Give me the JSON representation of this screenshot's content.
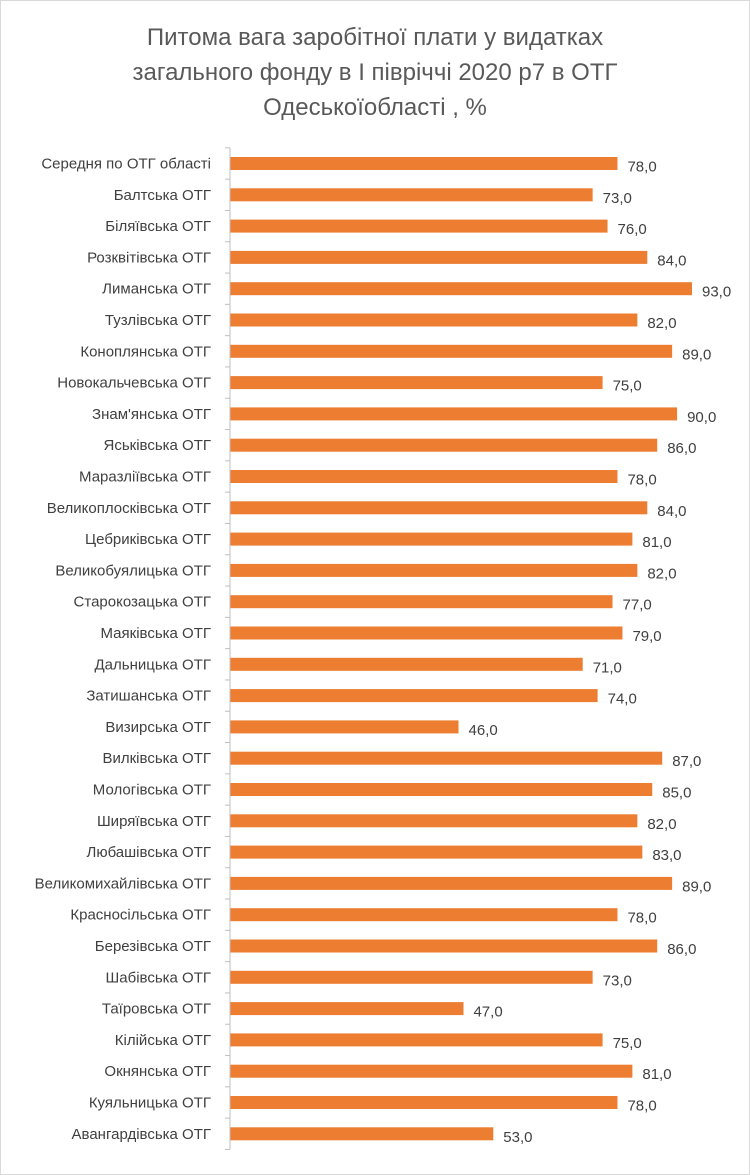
{
  "title_lines": [
    "Питома вага заробітної плати у видатках",
    "загального фонду в І півріччі 2020 р7 в ОТГ",
    "Одеськоїобласті  , %"
  ],
  "colors": {
    "bar": "#ED7D31",
    "text": "#404040",
    "axis": "#bfbfbf",
    "title": "#595959"
  },
  "chart_data": {
    "type": "bar",
    "orientation": "horizontal",
    "title": "Питома вага заробітної плати у видатках загального фонду в І півріччі 2020 р7 в ОТГ Одеськоїобласті  , %",
    "categories": [
      "Середня по ОТГ області",
      "Балтська ОТГ",
      "Біляївська ОТГ",
      "Розквітівська ОТГ",
      "Лиманська ОТГ",
      "Тузлівська ОТГ",
      "Коноплянська ОТГ",
      "Новокальчевська ОТГ",
      "Знам'янська ОТГ",
      "Яськівська ОТГ",
      "Маразліївська ОТГ",
      "Великоплосківська ОТГ",
      "Цебриківська ОТГ",
      "Великобуялицька ОТГ",
      "Старокозацька ОТГ",
      "Маяківська ОТГ",
      "Дальницька ОТГ",
      "Затишанська ОТГ",
      "Визирська ОТГ",
      "Вилківська ОТГ",
      "Мологівська ОТГ",
      "Ширяївська  ОТГ",
      "Любашівська ОТГ",
      "Великомихайлівська ОТГ",
      "Красносільська  ОТГ",
      "Березівська ОТГ",
      "Шабівська ОТГ",
      "Таїровська ОТГ",
      "Кілійська ОТГ",
      "Окнянська ОТГ",
      "Куяльницька ОТГ",
      "Авангардівська ОТГ"
    ],
    "values": [
      78,
      73,
      76,
      84,
      93,
      82,
      89,
      75,
      90,
      86,
      78,
      84,
      81,
      82,
      77,
      79,
      71,
      74,
      46,
      87,
      85,
      82,
      83,
      89,
      78,
      86,
      73,
      47,
      75,
      81,
      78,
      53
    ],
    "value_labels": [
      "78,0",
      "73,0",
      "76,0",
      "84,0",
      "93,0",
      "82,0",
      "89,0",
      "75,0",
      "90,0",
      "86,0",
      "78,0",
      "84,0",
      "81,0",
      "82,0",
      "77,0",
      "79,0",
      "71,0",
      "74,0",
      "46,0",
      "87,0",
      "85,0",
      "82,0",
      "83,0",
      "89,0",
      "78,0",
      "86,0",
      "73,0",
      "47,0",
      "75,0",
      "81,0",
      "78,0",
      "53,0"
    ],
    "xlim": [
      0,
      93
    ],
    "grid": false,
    "legend": "none"
  }
}
